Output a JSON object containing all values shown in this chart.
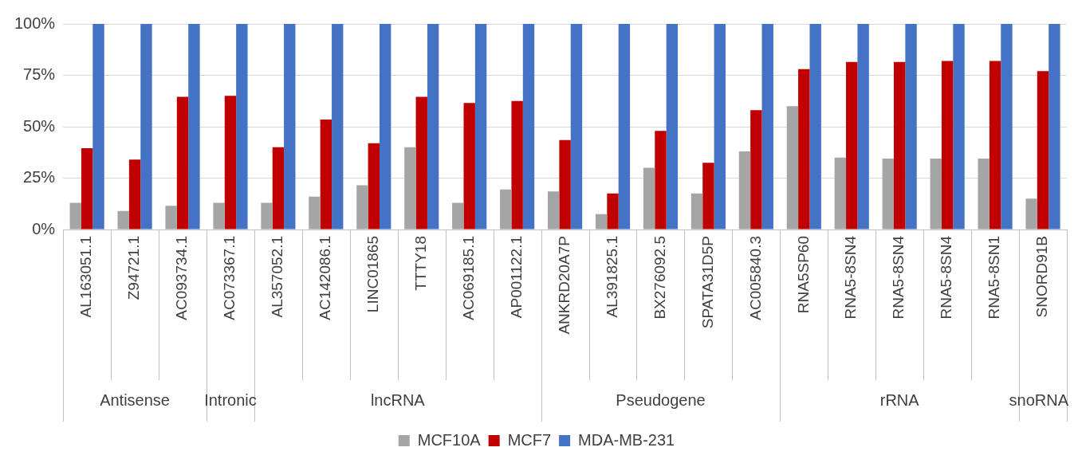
{
  "chart_data": {
    "type": "bar",
    "categories": [
      "AL163051.1",
      "Z94721.1",
      "AC093734.1",
      "AC073367.1",
      "AL357052.1",
      "AC142086.1",
      "LINC01865",
      "TTTY18",
      "AC069185.1",
      "AP001122.1",
      "ANKRD20A7P",
      "AL391825.1",
      "BX276092.5",
      "SPATA31D5P",
      "AC005840.3",
      "RNA5SP60",
      "RNA5-8SN4",
      "RNA5-8SN4",
      "RNA5-8SN4",
      "RNA5-8SN1",
      "SNORD91B"
    ],
    "series": [
      {
        "name": "MCF10A",
        "color": "#a5a5a5",
        "values": [
          13,
          9,
          11.5,
          13,
          13,
          16,
          21.5,
          40,
          13,
          19.5,
          18.5,
          7.5,
          30,
          17.5,
          38,
          60,
          35,
          34.5,
          34.5,
          34.5,
          15
        ]
      },
      {
        "name": "MCF7",
        "color": "#c00000",
        "values": [
          39.5,
          34,
          64.5,
          65,
          40,
          53.5,
          42,
          64.5,
          61.5,
          62.5,
          43.5,
          17.5,
          48,
          32.5,
          58,
          78,
          81.5,
          81.5,
          82,
          82,
          77
        ]
      },
      {
        "name": "MDA-MB-231",
        "color": "#4472c4",
        "values": [
          100,
          100,
          100,
          100,
          100,
          100,
          100,
          100,
          100,
          100,
          100,
          100,
          100,
          100,
          100,
          100,
          100,
          100,
          100,
          100,
          100
        ]
      }
    ],
    "annotations": [
      "Antisense",
      "Intronic",
      "lncRNA",
      "Pseudogene",
      "rRNA",
      "snoRNA"
    ],
    "ylim": [
      0,
      100
    ],
    "yticks": [
      {
        "value": 0,
        "label": "0%"
      },
      {
        "value": 25,
        "label": "25%"
      },
      {
        "value": 50,
        "label": "50%"
      },
      {
        "value": 75,
        "label": "75%"
      },
      {
        "value": 100,
        "label": "100%"
      }
    ],
    "grid": "y",
    "legend": "bottom"
  }
}
